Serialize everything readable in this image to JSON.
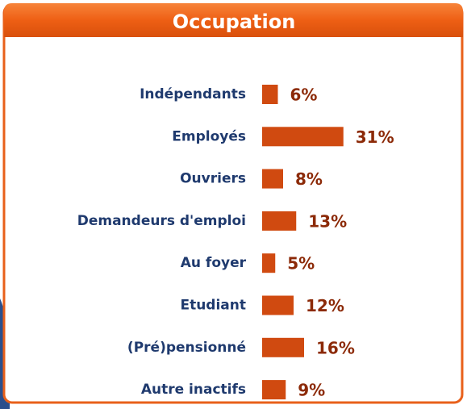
{
  "chart_data": {
    "type": "bar",
    "orientation": "horizontal",
    "title": "Occupation",
    "categories": [
      "Indépendants",
      "Employés",
      "Ouvriers",
      "Demandeurs d'emploi",
      "Au foyer",
      "Etudiant",
      "(Pré)pensionné",
      "Autre inactifs"
    ],
    "values": [
      6,
      31,
      8,
      13,
      5,
      12,
      16,
      9
    ],
    "value_labels": [
      "6%",
      "31%",
      "8%",
      "13%",
      "5%",
      "12%",
      "16%",
      "9%"
    ],
    "color": "#d04a10"
  }
}
